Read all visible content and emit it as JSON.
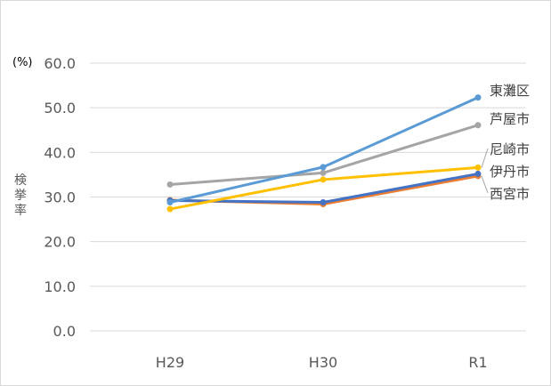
{
  "chart_data": {
    "type": "line",
    "title": "",
    "unit_label": "(%)",
    "ylabel": "検挙率",
    "categories": [
      "H29",
      "H30",
      "R1"
    ],
    "ylim": [
      0,
      60
    ],
    "yticks": [
      "0.0",
      "10.0",
      "20.0",
      "30.0",
      "40.0",
      "50.0",
      "60.0"
    ],
    "grid": true,
    "legend": "none (series labeled at line ends)",
    "series": [
      {
        "name": "東灘区",
        "color": "#5b9bd5",
        "values": [
          28.8,
          36.7,
          52.3
        ]
      },
      {
        "name": "芦屋市",
        "color": "#a5a5a5",
        "values": [
          32.8,
          35.4,
          46.1
        ]
      },
      {
        "name": "尼崎市",
        "color": "#ffc000",
        "values": [
          27.3,
          33.9,
          36.6
        ]
      },
      {
        "name": "伊丹市",
        "color": "#4472c4",
        "values": [
          29.2,
          28.8,
          35.2
        ]
      },
      {
        "name": "西宮市",
        "color": "#ed7d31",
        "values": [
          29.3,
          28.4,
          34.7
        ]
      }
    ]
  }
}
